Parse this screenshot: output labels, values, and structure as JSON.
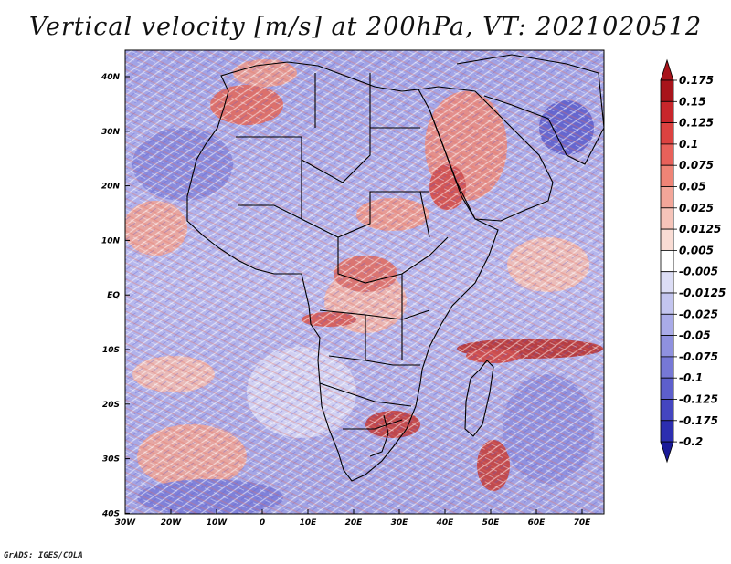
{
  "title": "Vertical velocity [m/s] at 200hPa, VT: 2021020512",
  "credit": "GrADS: IGES/COLA",
  "map": {
    "lon_labels": [
      "30W",
      "20W",
      "10W",
      "0",
      "10E",
      "20E",
      "30E",
      "40E",
      "50E",
      "60E",
      "70E"
    ],
    "lat_labels": [
      "40N",
      "30N",
      "20N",
      "10N",
      "EQ",
      "10S",
      "20S",
      "30S",
      "40S"
    ]
  },
  "colorbar": {
    "labels": [
      "0.175",
      "0.15",
      "0.125",
      "0.1",
      "0.075",
      "0.05",
      "0.025",
      "0.0125",
      "0.005",
      "-0.005",
      "-0.0125",
      "-0.025",
      "-0.05",
      "-0.075",
      "-0.1",
      "-0.125",
      "-0.175",
      "-0.2"
    ],
    "colors": [
      "#a8141b",
      "#c8262b",
      "#dc4240",
      "#e8615a",
      "#ef8476",
      "#f3a699",
      "#f6c4b9",
      "#f9dcd4",
      "#ffffff",
      "#dcddf5",
      "#c3c5ef",
      "#a9abe8",
      "#8f91df",
      "#7678d6",
      "#5d5fcc",
      "#4446c0",
      "#2c2eb0",
      "#1a1a98"
    ],
    "top_color": "#a8141b",
    "bottom_color": "#1a1a98"
  }
}
